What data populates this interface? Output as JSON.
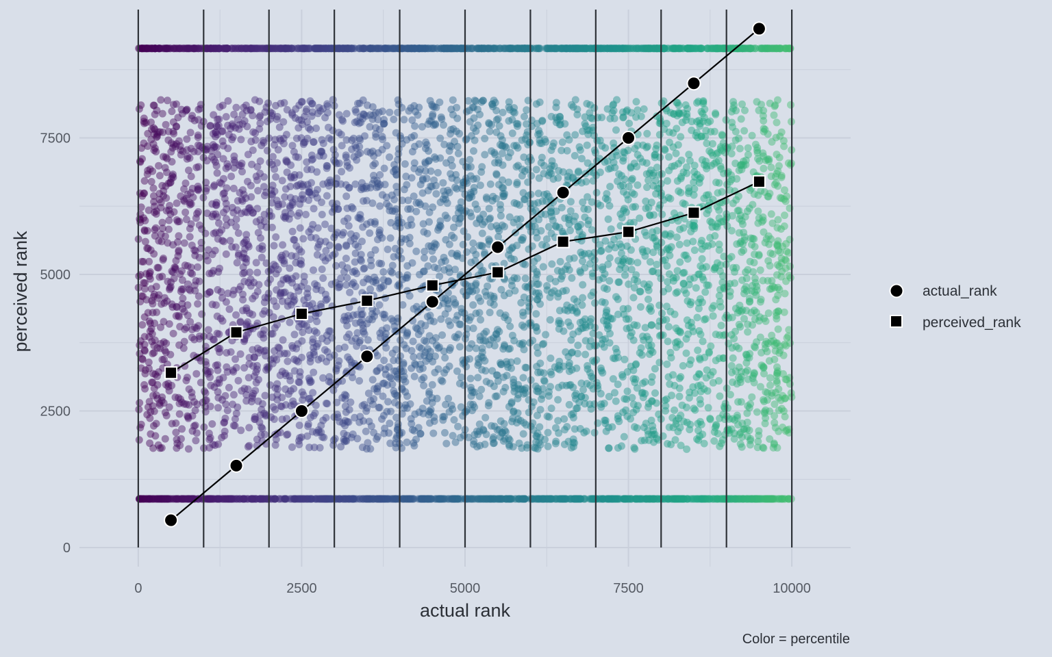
{
  "chart_data": {
    "type": "scatter",
    "xlabel": "actual rank",
    "ylabel": "perceived rank",
    "caption": "Color = percentile",
    "xlim": [
      -900,
      10900
    ],
    "ylim": [
      -350,
      9850
    ],
    "x_ticks": [
      0,
      2500,
      5000,
      7500,
      10000
    ],
    "x_tick_labels": [
      "0",
      "2500",
      "5000",
      "7500",
      "10000"
    ],
    "y_ticks": [
      0,
      2500,
      5000,
      7500
    ],
    "y_tick_labels": [
      "0",
      "2500",
      "5000",
      "7500"
    ],
    "grid": true,
    "decile_boundaries": [
      0,
      1000,
      2000,
      3000,
      4000,
      5000,
      6000,
      7000,
      8000,
      9000,
      10000
    ],
    "background_points": {
      "n": 10000,
      "x_range": [
        1,
        10000
      ],
      "upper_band_y": 9140,
      "lower_band_y": 890,
      "scatter_y_range": [
        1800,
        8200
      ],
      "color_scale": "viridis",
      "color_scale_range": [
        0,
        0.72
      ],
      "opacity": 0.45
    },
    "series": [
      {
        "name": "actual_rank",
        "marker": "circle",
        "x": [
          500,
          1500,
          2500,
          3500,
          4500,
          5500,
          6500,
          7500,
          8500,
          9500
        ],
        "values": [
          500,
          1500,
          2500,
          3500,
          4500,
          5500,
          6500,
          7500,
          8500,
          9500
        ]
      },
      {
        "name": "perceived_rank",
        "marker": "square",
        "x": [
          500,
          1500,
          2500,
          3500,
          4500,
          5500,
          6500,
          7500,
          8500,
          9500
        ],
        "values": [
          3200,
          3940,
          4280,
          4520,
          4800,
          5040,
          5600,
          5780,
          6130,
          6700
        ]
      }
    ],
    "legend_position": "right"
  },
  "colors": {
    "background": "#d9dfe9",
    "grid": "#c9cfdb",
    "decile_line": "#2e3238",
    "marker_fill": "#000000",
    "marker_edge": "#ffffff"
  }
}
